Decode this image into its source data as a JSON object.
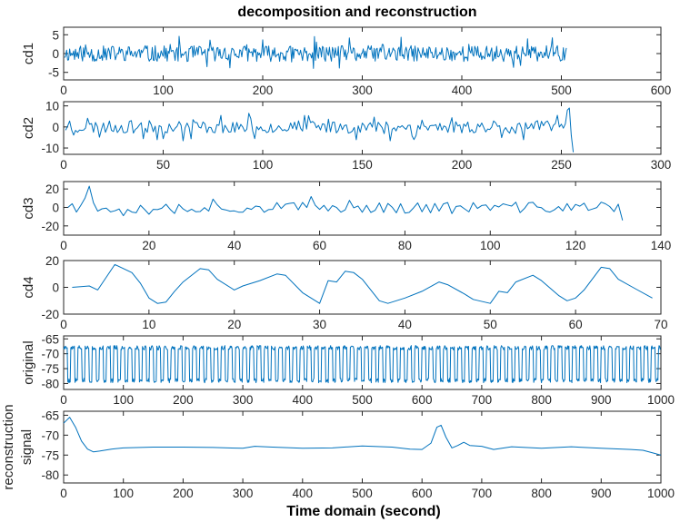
{
  "title": "decomposition and reconstruction",
  "xlabel": "Time domain (second)",
  "colors": {
    "series": "#0072BD",
    "axes": "#262626"
  },
  "chart_data": [
    {
      "name": "cd1",
      "type": "line",
      "ylabel": [
        "cd1"
      ],
      "xlim": [
        0,
        600
      ],
      "ylim": [
        -7,
        7
      ],
      "xticks": [
        "0",
        "100",
        "200",
        "300",
        "400",
        "500",
        "600"
      ],
      "xtickvals": [
        0,
        100,
        200,
        300,
        400,
        500,
        600
      ],
      "yticks": [
        "-5",
        "0",
        "5"
      ],
      "ytickvals": [
        -5,
        0,
        5
      ],
      "n": 505,
      "wave": {
        "kind": "noise",
        "amp": 3.5,
        "seed": 11,
        "freq": 0.9
      }
    },
    {
      "name": "cd2",
      "type": "line",
      "ylabel": [
        "cd2"
      ],
      "xlim": [
        0,
        300
      ],
      "ylim": [
        -13,
        12
      ],
      "xticks": [
        "0",
        "50",
        "100",
        "150",
        "200",
        "250",
        "300"
      ],
      "xtickvals": [
        0,
        50,
        100,
        150,
        200,
        250,
        300
      ],
      "yticks": [
        "-10",
        "0",
        "10"
      ],
      "ytickvals": [
        -10,
        0,
        10
      ],
      "n": 256,
      "wave": {
        "kind": "noise",
        "amp": 5,
        "seed": 23,
        "freq": 0.8,
        "tail": [
          8,
          9,
          -4,
          -12
        ]
      }
    },
    {
      "name": "cd3",
      "type": "line",
      "ylabel": [
        "cd3"
      ],
      "xlim": [
        0,
        140
      ],
      "ylim": [
        -30,
        28
      ],
      "xticks": [
        "0",
        "20",
        "40",
        "60",
        "80",
        "100",
        "120",
        "140"
      ],
      "xtickvals": [
        0,
        20,
        40,
        60,
        80,
        100,
        120,
        140
      ],
      "yticks": [
        "-20",
        "0",
        "20"
      ],
      "ytickvals": [
        -20,
        0,
        20
      ],
      "n": 131,
      "wave": {
        "kind": "noise",
        "amp": 10,
        "seed": 37,
        "freq": 0.95,
        "head": [
          0,
          4,
          -5,
          2,
          10,
          23,
          5,
          -4
        ],
        "tailval": -14
      }
    },
    {
      "name": "cd4",
      "type": "line",
      "ylabel": [
        "cd4"
      ],
      "xlim": [
        0,
        70
      ],
      "ylim": [
        -20,
        20
      ],
      "xticks": [
        "0",
        "10",
        "20",
        "30",
        "40",
        "50",
        "60",
        "70"
      ],
      "xtickvals": [
        0,
        10,
        20,
        30,
        40,
        50,
        60,
        70
      ],
      "yticks": [
        "-20",
        "0",
        "20"
      ],
      "ytickvals": [
        -20,
        0,
        20
      ],
      "x": [
        1,
        3,
        4,
        6,
        8,
        9,
        10,
        11,
        12,
        13,
        14,
        16,
        17,
        18,
        20,
        21,
        23,
        25,
        26,
        28,
        30,
        31,
        32,
        33,
        34,
        35,
        37,
        38,
        40,
        42,
        44,
        45,
        47,
        48,
        50,
        51,
        52,
        53,
        55,
        56,
        58,
        59,
        60,
        61,
        63,
        64,
        65,
        67,
        69
      ],
      "values": [
        0,
        1,
        -2,
        17,
        11,
        3,
        -8,
        -12,
        -11,
        -3,
        4,
        14,
        13,
        6,
        -2,
        1,
        5,
        10,
        9,
        -4,
        -12,
        5,
        4,
        12,
        11,
        6,
        -10,
        -12,
        -8,
        -3,
        4,
        2,
        -5,
        -9,
        -12,
        -3,
        -4,
        4,
        9,
        5,
        -6,
        -10,
        -8,
        -2,
        15,
        14,
        6,
        -1,
        -8
      ]
    },
    {
      "name": "original",
      "type": "line",
      "ylabel": [
        "original"
      ],
      "xlim": [
        0,
        1000
      ],
      "ylim": [
        -82,
        -64
      ],
      "xticks": [
        "0",
        "100",
        "200",
        "300",
        "400",
        "500",
        "600",
        "700",
        "800",
        "900",
        "1000"
      ],
      "xtickvals": [
        0,
        100,
        200,
        300,
        400,
        500,
        600,
        700,
        800,
        900,
        1000
      ],
      "yticks": [
        "-65",
        "-70",
        "-75",
        "-80"
      ],
      "ytickvals": [
        -65,
        -70,
        -75,
        -80
      ],
      "n": 1000,
      "wave": {
        "kind": "square",
        "low": -79,
        "high": -68,
        "period": 12,
        "seed": 5
      }
    },
    {
      "name": "reconstruction",
      "type": "line",
      "ylabel": [
        "reconstruction",
        "signal"
      ],
      "xlim": [
        0,
        1000
      ],
      "ylim": [
        -82,
        -64
      ],
      "xticks": [
        "0",
        "100",
        "200",
        "300",
        "400",
        "500",
        "600",
        "700",
        "800",
        "900",
        "1000"
      ],
      "xtickvals": [
        0,
        100,
        200,
        300,
        400,
        500,
        600,
        700,
        800,
        900,
        1000
      ],
      "yticks": [
        "-65",
        "-70",
        "-75",
        "-80"
      ],
      "ytickvals": [
        -65,
        -70,
        -75,
        -80
      ],
      "x": [
        0,
        10,
        20,
        30,
        40,
        50,
        60,
        80,
        100,
        150,
        200,
        250,
        300,
        320,
        350,
        400,
        450,
        500,
        550,
        580,
        600,
        615,
        625,
        632,
        640,
        650,
        660,
        670,
        680,
        700,
        720,
        750,
        800,
        850,
        900,
        950,
        970,
        990,
        1000
      ],
      "values": [
        -67,
        -65.5,
        -68,
        -71.5,
        -73.5,
        -74.2,
        -74,
        -73.5,
        -73.2,
        -73,
        -73,
        -73.1,
        -73.3,
        -72.8,
        -73,
        -73.3,
        -73.2,
        -72.7,
        -73,
        -73.5,
        -73.6,
        -72,
        -68,
        -67.5,
        -70.5,
        -73.2,
        -72.6,
        -71.8,
        -72.6,
        -72.8,
        -73.6,
        -72.9,
        -73.3,
        -72.9,
        -73.3,
        -73.6,
        -73.8,
        -74.6,
        -75
      ]
    }
  ]
}
